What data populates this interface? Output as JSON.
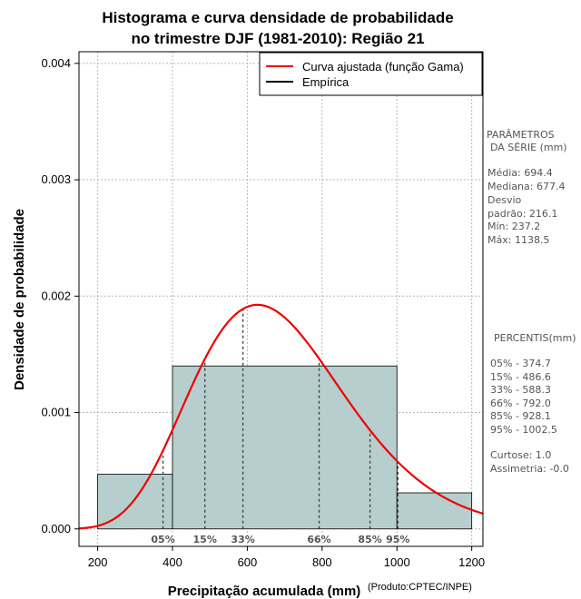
{
  "chart_data": {
    "type": "histogram",
    "title": [
      "Histograma e curva densidade de probabilidade",
      "no trimestre DJF (1981-2010): Região 21"
    ],
    "xlabel": "Precipitação acumulada (mm)",
    "ylabel": "Densidade de probabilidade",
    "credit": "(Produto:CPTEC/INPE)",
    "xlim": [
      150,
      1230
    ],
    "ylim": [
      -0.00015,
      0.0041
    ],
    "x_ticks": [
      200,
      400,
      600,
      800,
      1000,
      1200
    ],
    "x_tick_labels": [
      "200",
      "400",
      "600",
      "800",
      "1000",
      "1200"
    ],
    "y_ticks": [
      0.0,
      0.001,
      0.002,
      0.003,
      0.004
    ],
    "y_tick_labels": [
      "0.000",
      "0.001",
      "0.002",
      "0.003",
      "0.004"
    ],
    "bins": [
      {
        "start": 200,
        "end": 400,
        "density": 0.00047
      },
      {
        "start": 400,
        "end": 1000,
        "density": 0.0014
      },
      {
        "start": 1000,
        "end": 1200,
        "density": 0.00031
      }
    ],
    "bar_color": "#b6cfce",
    "curve_color": "#ee0000",
    "gamma_fit": {
      "mean": 694.4,
      "sd": 216.1
    },
    "percentile_markers": [
      {
        "label": "05%",
        "value": 374.7
      },
      {
        "label": "15%",
        "value": 486.6
      },
      {
        "label": "33%",
        "value": 588.3
      },
      {
        "label": "66%",
        "value": 792.0
      },
      {
        "label": "85%",
        "value": 928.1
      },
      {
        "label": "95%",
        "value": 1002.5
      }
    ],
    "legend": [
      {
        "label": "Curva ajustada (função Gama)",
        "color": "#ee0000"
      },
      {
        "label": "Empírica",
        "color": "#000000"
      }
    ],
    "legend_position": "top-right",
    "grid": true
  },
  "side_panel": {
    "params_header": [
      "PARÂMETROS",
      "DA SÉRIE (mm)"
    ],
    "params": [
      "Média:  694.4",
      "Mediana:  677.4",
      "Desvio",
      "padrão:  216.1",
      "Mín:  237.2",
      "Máx:  1138.5"
    ],
    "percentiles_header": "PERCENTIS(mm)",
    "percentiles": [
      "05% -  374.7",
      "15% -  486.6",
      "33% -  588.3",
      "66% -  792.0",
      "85% -  928.1",
      "95% -  1002.5"
    ],
    "stats": [
      "Curtose:  1.0",
      "Assimetria:  -0.0"
    ]
  }
}
